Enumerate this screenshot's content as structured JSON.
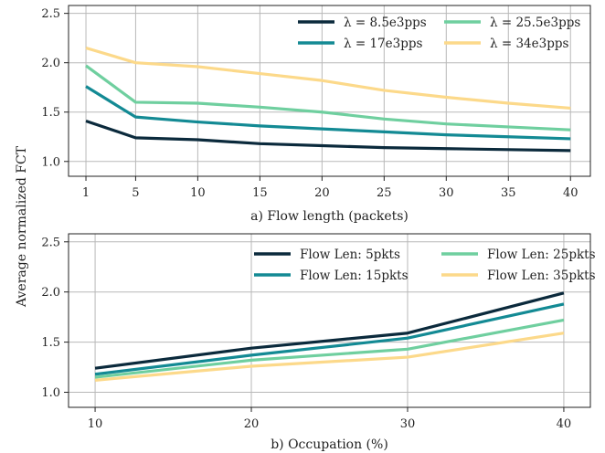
{
  "chart_data": [
    {
      "type": "line",
      "xlabel": "a) Flow length (packets)",
      "ylabel": "Average normalized FCT",
      "x": [
        1,
        5,
        10,
        15,
        20,
        25,
        30,
        35,
        40
      ],
      "xticks": [
        "1",
        "5",
        "10",
        "15",
        "20",
        "25",
        "30",
        "35",
        "40"
      ],
      "yticks": [
        "1.0",
        "1.5",
        "2.0",
        "2.5"
      ],
      "xlim": [
        -0.4,
        41.6
      ],
      "ylim": [
        0.85,
        2.58
      ],
      "grid": true,
      "legend": "top-right",
      "series": [
        {
          "name": "λ = 8.5e3pps",
          "color": "#0b2a3c",
          "values": [
            1.41,
            1.24,
            1.22,
            1.18,
            1.16,
            1.14,
            1.13,
            1.12,
            1.11
          ]
        },
        {
          "name": "λ = 17e3pps",
          "color": "#138a94",
          "values": [
            1.76,
            1.45,
            1.4,
            1.36,
            1.33,
            1.3,
            1.27,
            1.25,
            1.23
          ]
        },
        {
          "name": "λ = 25.5e3pps",
          "color": "#6fcf9f",
          "values": [
            1.97,
            1.6,
            1.59,
            1.55,
            1.5,
            1.43,
            1.38,
            1.35,
            1.32
          ]
        },
        {
          "name": "λ = 34e3pps",
          "color": "#fcd98a",
          "values": [
            2.15,
            2.0,
            1.96,
            1.89,
            1.82,
            1.72,
            1.65,
            1.59,
            1.54
          ]
        }
      ]
    },
    {
      "type": "line",
      "xlabel": "b) Occupation (%)",
      "ylabel": "Average normalized FCT",
      "x": [
        10,
        20,
        30,
        40
      ],
      "xticks": [
        "10",
        "20",
        "30",
        "40"
      ],
      "yticks": [
        "1.0",
        "1.5",
        "2.0",
        "2.5"
      ],
      "xlim": [
        8.3,
        41.7
      ],
      "ylim": [
        0.85,
        2.58
      ],
      "grid": true,
      "legend": "top-right",
      "series": [
        {
          "name": "Flow Len: 5pkts",
          "color": "#0b2a3c",
          "values": [
            1.24,
            1.44,
            1.59,
            1.99
          ]
        },
        {
          "name": "Flow Len: 15pkts",
          "color": "#138a94",
          "values": [
            1.18,
            1.37,
            1.54,
            1.88
          ]
        },
        {
          "name": "Flow Len: 25pkts",
          "color": "#6fcf9f",
          "values": [
            1.15,
            1.32,
            1.43,
            1.72
          ]
        },
        {
          "name": "Flow Len: 35pkts",
          "color": "#fcd98a",
          "values": [
            1.12,
            1.26,
            1.35,
            1.59
          ]
        }
      ]
    }
  ],
  "shared_ylabel": "Average normalized FCT"
}
